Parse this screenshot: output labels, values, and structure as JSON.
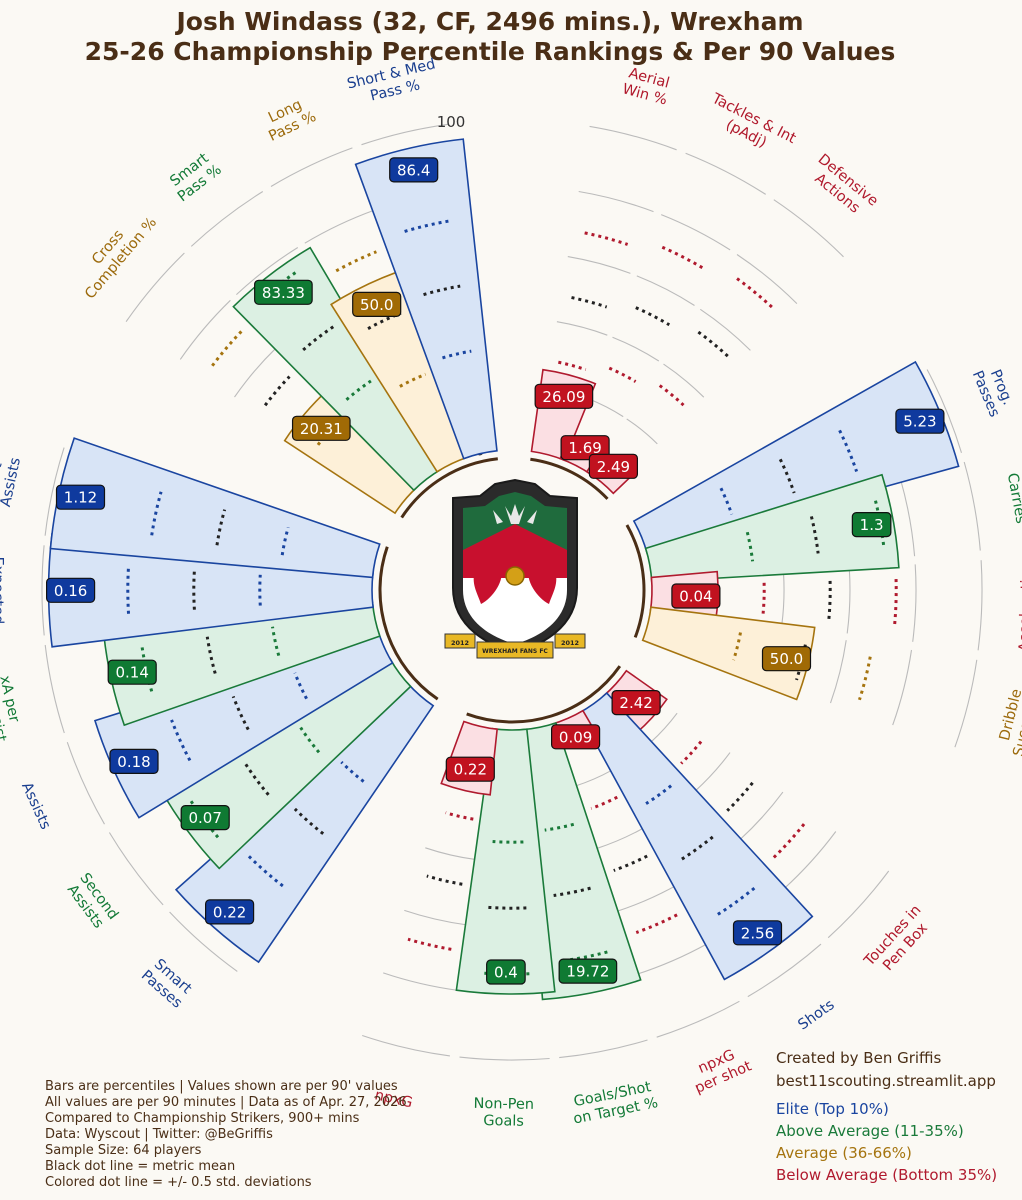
{
  "header": {
    "title_line1": "Josh Windass (32, CF, 2496 mins.), Wrexham",
    "title_line2": "25-26 Championship Percentile Rankings & Per 90 Values"
  },
  "footer": {
    "notes": [
      "Bars are percentiles | Values shown are per 90' values",
      "All values are per 90 minutes | Data as of Apr. 27, 2026",
      "Compared to Championship Strikers, 900+ mins",
      "Data: Wyscout | Twitter: @BeGriffis",
      "Sample Size: 64 players",
      "Black dot line = metric mean",
      "Colored dot line = +/- 0.5 std. deviations"
    ],
    "credit_line1": "Created by Ben Griffis",
    "credit_line2": "best11scouting.streamlit.app"
  },
  "legend": [
    {
      "label": "Elite (Top 10%)",
      "tier": "elite"
    },
    {
      "label": "Above Average (11-35%)",
      "tier": "above"
    },
    {
      "label": "Average (36-66%)",
      "tier": "average"
    },
    {
      "label": "Below Average (Bottom 35%)",
      "tier": "below"
    }
  ],
  "colors": {
    "elite": {
      "fill": "#d8e4f6",
      "edge": "#1a45a0",
      "box": "#0f3a9e",
      "text": "#1a3f8f"
    },
    "above": {
      "fill": "#dcf0e3",
      "edge": "#1a7a3a",
      "box": "#0f7a33",
      "text": "#137a37"
    },
    "average": {
      "fill": "#fdf0d8",
      "edge": "#a5740f",
      "box": "#a06a05",
      "text": "#9c6a0c"
    },
    "below": {
      "fill": "#fbdfe3",
      "edge": "#b01a2e",
      "box": "#c1121f",
      "text": "#b0192c"
    },
    "grid": "#bbbbbb",
    "title": "#4a2e16"
  },
  "crest": {
    "banner_left": "2012",
    "banner_center": "WREXHAM FANS FC",
    "banner_right": "2012"
  },
  "chart_data": {
    "type": "radial_bar",
    "radial_ticks": [
      0,
      20,
      40,
      60,
      80,
      100
    ],
    "rlim": [
      0,
      100
    ],
    "grid": true,
    "metrics": [
      {
        "label": "Aerial\nWin %",
        "value": "26.09",
        "percentile": 25,
        "tier": "below"
      },
      {
        "label": "Tackles & Int\n(pAdj)",
        "value": "1.69",
        "percentile": 5,
        "tier": "below"
      },
      {
        "label": "Defensive\nActions",
        "value": "2.49",
        "percentile": 8,
        "tier": "below"
      },
      {
        "label": "Prog.\nPasses",
        "value": "5.23",
        "percentile": 98,
        "tier": "elite"
      },
      {
        "label": "Prog.\nCarries",
        "value": "1.3",
        "percentile": 75,
        "tier": "above"
      },
      {
        "label": "Acceleration\nwith Ball",
        "value": "0.04",
        "percentile": 20,
        "tier": "below"
      },
      {
        "label": "Dribble\nSuccess %",
        "value": "50.0",
        "percentile": 50,
        "tier": "average"
      },
      {
        "label": "Touches in\nPen Box",
        "value": "2.42",
        "percentile": 15,
        "tier": "below"
      },
      {
        "label": "Shots",
        "value": "2.56",
        "percentile": 92,
        "tier": "elite"
      },
      {
        "label": "npxG\nper shot",
        "value": "0.09",
        "percentile": 5,
        "tier": "below"
      },
      {
        "label": "Goals/Shot\non Target %",
        "value": "19.72",
        "percentile": 82,
        "tier": "above"
      },
      {
        "label": "Non-Pen\nGoals",
        "value": "0.4",
        "percentile": 80,
        "tier": "above"
      },
      {
        "label": "npxG",
        "value": "0.22",
        "percentile": 20,
        "tier": "below"
      },
      {
        "label": "Smart\nPasses",
        "value": "0.22",
        "percentile": 94,
        "tier": "elite"
      },
      {
        "label": "Second\nAssists",
        "value": "0.07",
        "percentile": 80,
        "tier": "above"
      },
      {
        "label": "Assists",
        "value": "0.18",
        "percentile": 90,
        "tier": "elite"
      },
      {
        "label": "xA per\nShot Assist",
        "value": "0.14",
        "percentile": 82,
        "tier": "above"
      },
      {
        "label": "Expected\nAssists (xA)",
        "value": "0.16",
        "percentile": 98,
        "tier": "elite"
      },
      {
        "label": "Shot\nAssists",
        "value": "1.12",
        "percentile": 98,
        "tier": "elite"
      },
      {
        "label": "Cross\nCompletion %",
        "value": "20.31",
        "percentile": 40,
        "tier": "average"
      },
      {
        "label": "Smart\nPass %",
        "value": "83.33",
        "percentile": 78,
        "tier": "above"
      },
      {
        "label": "Long\nPass %",
        "value": "50.0",
        "percentile": 60,
        "tier": "average"
      },
      {
        "label": "Short & Med\nPass %",
        "value": "86.4",
        "percentile": 95,
        "tier": "elite"
      }
    ]
  }
}
